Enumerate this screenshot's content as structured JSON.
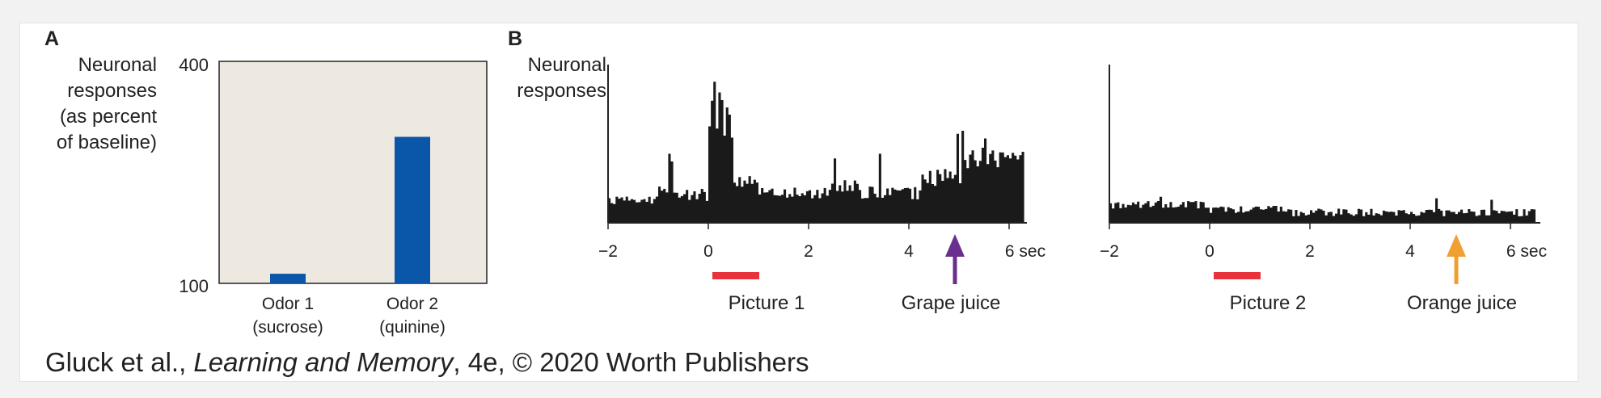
{
  "panel_a": {
    "letter": "A",
    "ylabel_lines": [
      "Neuronal",
      "responses",
      "(as percent",
      "of baseline)"
    ],
    "ytick_top": "400",
    "ytick_bottom": "100",
    "xlabels": [
      {
        "line1": "Odor 1",
        "line2": "(sucrose)"
      },
      {
        "line1": "Odor 2",
        "line2": "(quinine)"
      }
    ]
  },
  "panel_b": {
    "letter": "B",
    "ylabel_lines": [
      "Neuronal",
      "responses"
    ],
    "xticks": [
      "−2",
      "0",
      "2",
      "4",
      "6 sec"
    ],
    "plots": [
      {
        "picture_label": "Picture 1",
        "juice_label": "Grape juice",
        "arrow_color": "#6a2f8e"
      },
      {
        "picture_label": "Picture 2",
        "juice_label": "Orange juice",
        "arrow_color": "#f0a030"
      }
    ],
    "picture_bar_color": "#e8323c"
  },
  "caption": {
    "pre": "Gluck et al., ",
    "italic": "Learning and Memory",
    "post": ", 4e, © 2020 Worth Publishers"
  },
  "chart_data": [
    {
      "type": "bar",
      "categories": [
        "Odor 1 (sucrose)",
        "Odor 2 (quinine)"
      ],
      "values": [
        113,
        298
      ],
      "ylabel": "Neuronal responses (as percent of baseline)",
      "ylim": [
        100,
        400
      ],
      "bar_color": "#0a56a8",
      "background_color": "#ede9e0",
      "grid": false
    },
    {
      "type": "bar",
      "title": "Picture 1 / Grape juice",
      "xlabel": "sec",
      "ylabel": "Neuronal responses",
      "xlim": [
        -2,
        6.3
      ],
      "ylim": [
        0,
        1
      ],
      "picture_interval": [
        0,
        1
      ],
      "juice_time": 5,
      "segments": [
        {
          "x0": -2.0,
          "x1": -1.0,
          "base": 0.14,
          "amp": 0.06
        },
        {
          "x0": -1.0,
          "x1": -0.6,
          "base": 0.2,
          "amp": 0.1
        },
        {
          "x0": -0.6,
          "x1": 0.0,
          "base": 0.17,
          "amp": 0.08
        },
        {
          "x0": 0.0,
          "x1": 0.5,
          "base": 0.65,
          "amp": 0.3
        },
        {
          "x0": 0.5,
          "x1": 1.0,
          "base": 0.26,
          "amp": 0.08
        },
        {
          "x0": 1.0,
          "x1": 2.4,
          "base": 0.18,
          "amp": 0.08
        },
        {
          "x0": 2.4,
          "x1": 3.0,
          "base": 0.22,
          "amp": 0.1
        },
        {
          "x0": 3.0,
          "x1": 4.2,
          "base": 0.18,
          "amp": 0.09
        },
        {
          "x0": 4.2,
          "x1": 5.0,
          "base": 0.26,
          "amp": 0.14
        },
        {
          "x0": 5.0,
          "x1": 6.3,
          "base": 0.4,
          "amp": 0.14
        }
      ],
      "peaks": [
        [
          -0.8,
          0.45
        ],
        [
          -0.75,
          0.4
        ],
        [
          0.12,
          0.92
        ],
        [
          0.18,
          0.85
        ],
        [
          0.25,
          0.8
        ],
        [
          2.5,
          0.42
        ],
        [
          3.4,
          0.45
        ],
        [
          4.95,
          0.58
        ],
        [
          5.05,
          0.6
        ],
        [
          5.5,
          0.55
        ]
      ]
    },
    {
      "type": "bar",
      "title": "Picture 2 / Orange juice",
      "xlabel": "sec",
      "ylabel": "Neuronal responses",
      "xlim": [
        -2,
        6.5
      ],
      "ylim": [
        0,
        1
      ],
      "picture_interval": [
        0,
        1
      ],
      "juice_time": 5,
      "segments": [
        {
          "x0": -2.0,
          "x1": 0.0,
          "base": 0.11,
          "amp": 0.05
        },
        {
          "x0": 0.0,
          "x1": 1.5,
          "base": 0.08,
          "amp": 0.05
        },
        {
          "x0": 1.5,
          "x1": 6.5,
          "base": 0.06,
          "amp": 0.05
        }
      ],
      "peaks": [
        [
          -1.8,
          0.02
        ],
        [
          -1.0,
          0.17
        ],
        [
          4.5,
          0.16
        ],
        [
          5.6,
          0.15
        ]
      ]
    }
  ]
}
